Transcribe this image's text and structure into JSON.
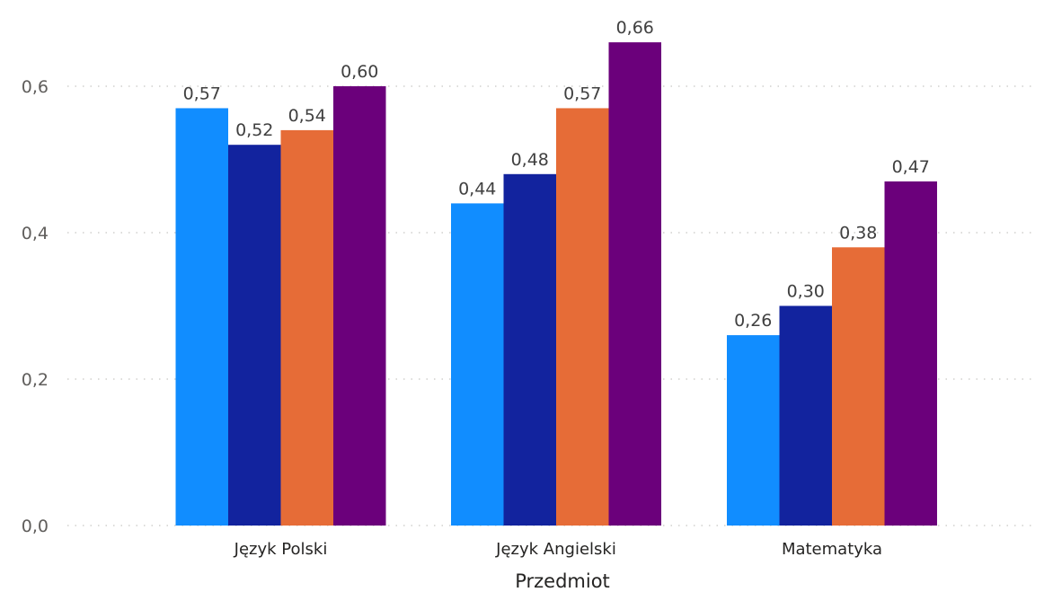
{
  "chart_data": {
    "type": "bar",
    "xlabel": "Przedmiot",
    "ylabel": "",
    "categories": [
      "Język Polski",
      "Język Angielski",
      "Matematyka"
    ],
    "series": [
      {
        "color": "#118dff",
        "values": [
          0.57,
          0.44,
          0.26
        ],
        "labels": [
          "0,57",
          "0,44",
          "0,26"
        ]
      },
      {
        "color": "#12239e",
        "values": [
          0.52,
          0.48,
          0.3
        ],
        "labels": [
          "0,52",
          "0,48",
          "0,30"
        ]
      },
      {
        "color": "#e66c37",
        "values": [
          0.54,
          0.57,
          0.38
        ],
        "labels": [
          "0,54",
          "0,57",
          "0,38"
        ]
      },
      {
        "color": "#6b007b",
        "values": [
          0.6,
          0.66,
          0.47
        ],
        "labels": [
          "0,60",
          "0,66",
          "0,47"
        ]
      }
    ],
    "ylim": [
      0,
      0.66
    ],
    "yticks": [
      0,
      0.2,
      0.4,
      0.6
    ],
    "ytick_labels": [
      "0,0",
      "0,2",
      "0,4",
      "0,6"
    ],
    "grid": true,
    "legend": "none"
  }
}
